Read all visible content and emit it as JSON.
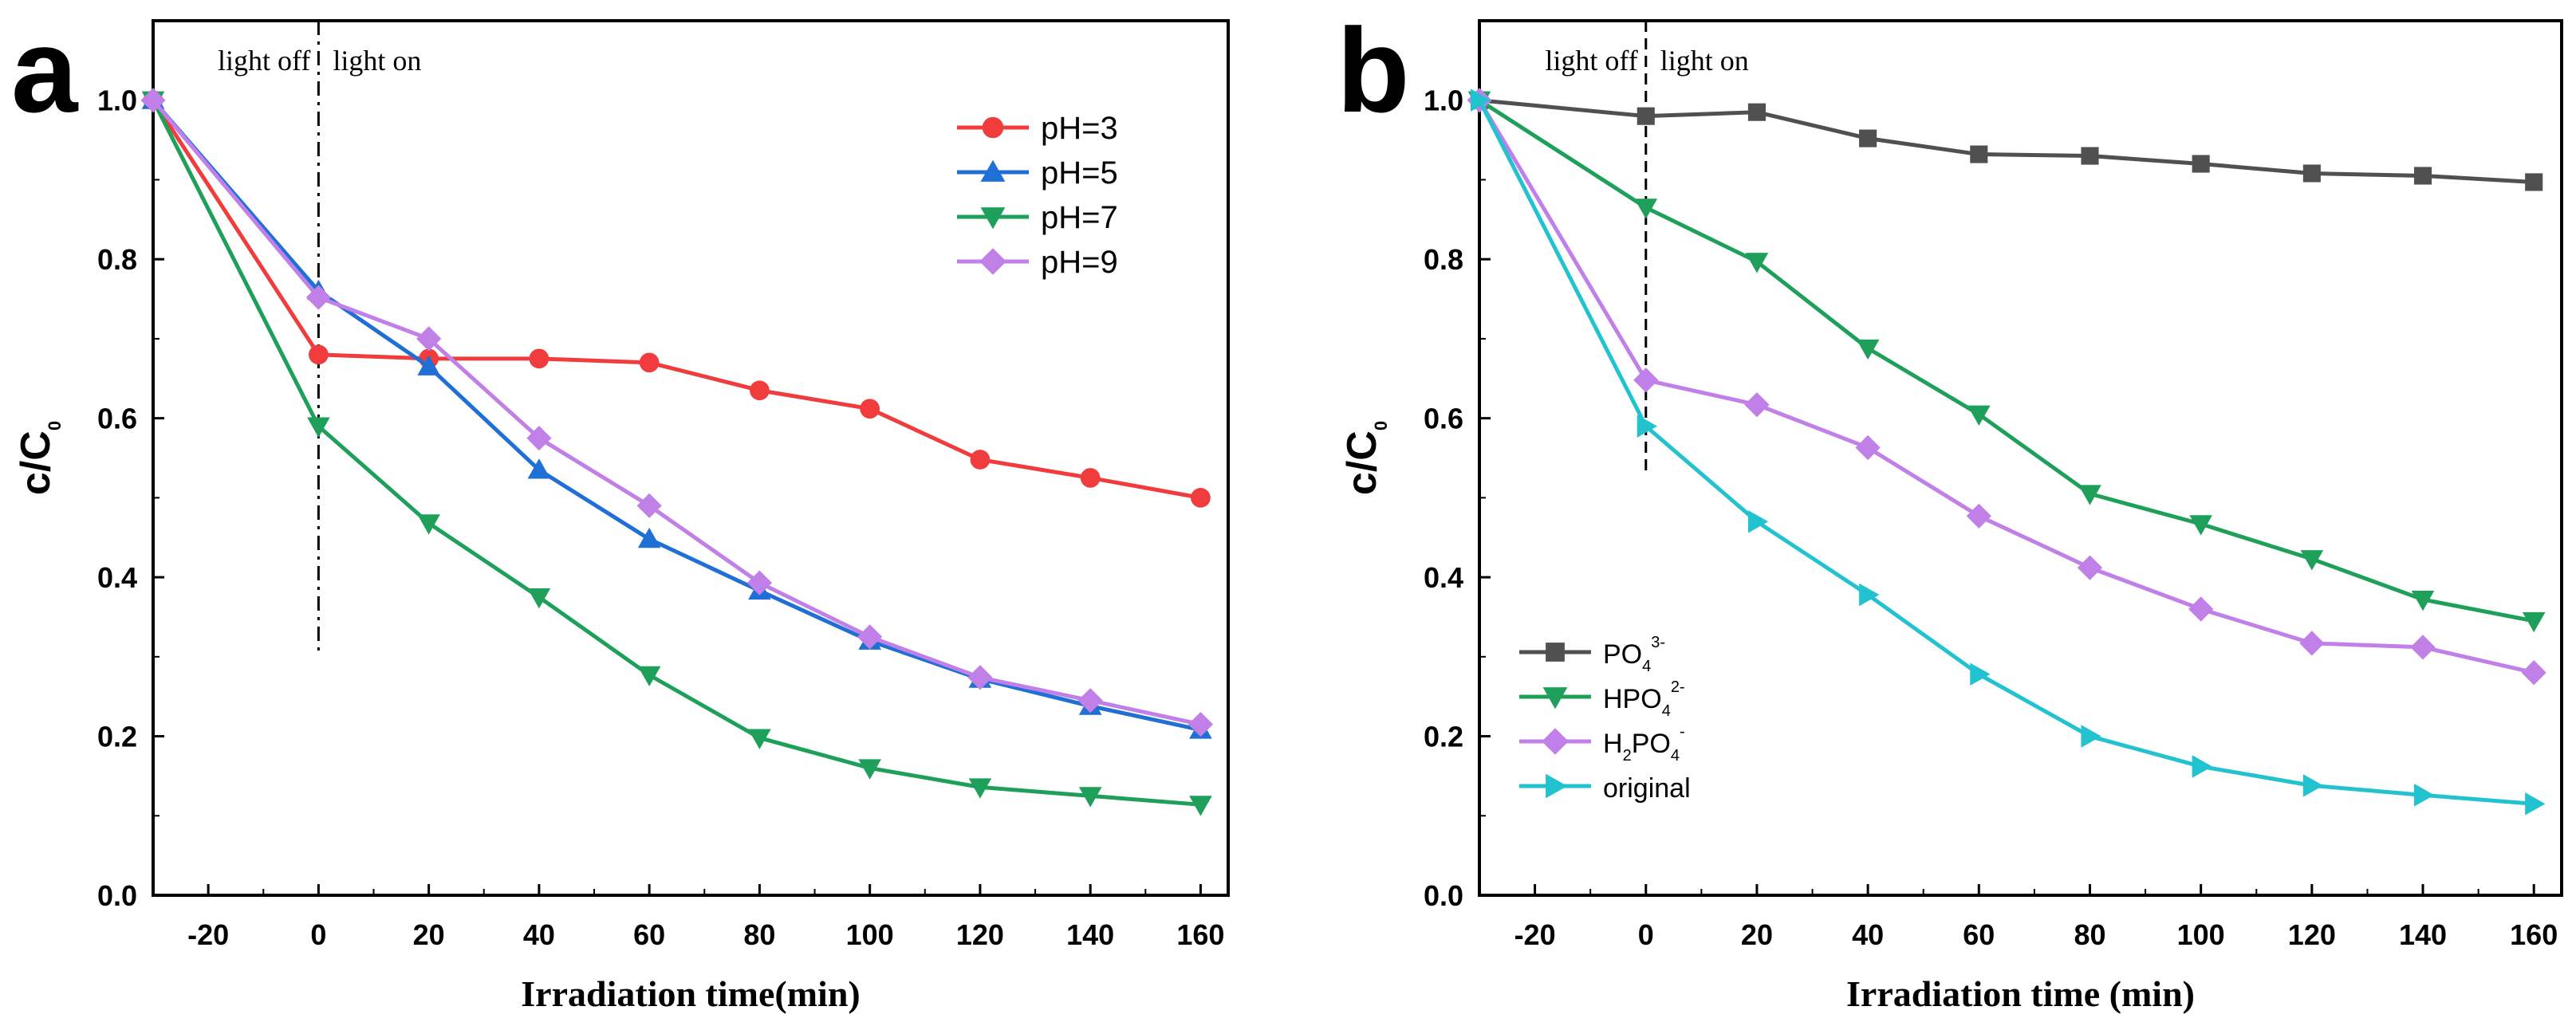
{
  "chart_data": [
    {
      "panel": "a",
      "type": "line",
      "xlabel": "Irradiation time(min)",
      "ylabel_main": "c/C",
      "ylabel_sub": "0",
      "xlim": [
        -30,
        165
      ],
      "ylim": [
        0.0,
        1.1
      ],
      "xticks": [
        "-20",
        "0",
        "20",
        "40",
        "60",
        "80",
        "100",
        "120",
        "140",
        "160"
      ],
      "xtick_values": [
        -20,
        0,
        20,
        40,
        60,
        80,
        100,
        120,
        140,
        160
      ],
      "yticks": [
        "0.0",
        "0.2",
        "0.4",
        "0.6",
        "0.8",
        "1.0"
      ],
      "ytick_values": [
        0.0,
        0.2,
        0.4,
        0.6,
        0.8,
        1.0
      ],
      "annotation_left": "light off",
      "annotation_right": "light on",
      "divider": {
        "x": 0,
        "y_from": 0.3,
        "y_to": 1.1,
        "style": "dash-dot"
      },
      "legend_position": "top-right",
      "x": [
        -30,
        0,
        20,
        40,
        60,
        80,
        100,
        120,
        140,
        160
      ],
      "series": [
        {
          "name": "pH=3",
          "color": "#f03c3c",
          "marker": "circle",
          "values": [
            1.0,
            0.68,
            0.675,
            0.675,
            0.67,
            0.635,
            0.612,
            0.548,
            0.525,
            0.5
          ]
        },
        {
          "name": "pH=5",
          "color": "#1f6fd6",
          "marker": "triangle-up",
          "values": [
            1.0,
            0.76,
            0.665,
            0.535,
            0.448,
            0.383,
            0.32,
            0.272,
            0.238,
            0.208
          ]
        },
        {
          "name": "pH=7",
          "color": "#1fa05a",
          "marker": "triangle-down",
          "values": [
            1.0,
            0.59,
            0.468,
            0.375,
            0.277,
            0.198,
            0.16,
            0.136,
            0.125,
            0.114
          ]
        },
        {
          "name": "pH=9",
          "color": "#c080e8",
          "marker": "diamond",
          "values": [
            1.0,
            0.752,
            0.7,
            0.575,
            0.49,
            0.393,
            0.325,
            0.274,
            0.245,
            0.215
          ]
        }
      ]
    },
    {
      "panel": "b",
      "type": "line",
      "xlabel": "Irradiation time (min)",
      "ylabel_main": "c/C",
      "ylabel_sub": "0",
      "xlim": [
        -30,
        165
      ],
      "ylim": [
        0.0,
        1.1
      ],
      "xticks": [
        "-20",
        "0",
        "20",
        "40",
        "60",
        "80",
        "100",
        "120",
        "140",
        "160"
      ],
      "xtick_values": [
        -20,
        0,
        20,
        40,
        60,
        80,
        100,
        120,
        140,
        160
      ],
      "yticks": [
        "0.0",
        "0.2",
        "0.4",
        "0.6",
        "0.8",
        "1.0"
      ],
      "ytick_values": [
        0.0,
        0.2,
        0.4,
        0.6,
        0.8,
        1.0
      ],
      "annotation_left": "light off",
      "annotation_right": "light on",
      "divider": {
        "x": 0,
        "y_from": 0.53,
        "y_to": 1.1,
        "style": "dashed"
      },
      "legend_position": "bottom-left",
      "x": [
        -30,
        0,
        20,
        40,
        60,
        80,
        100,
        120,
        140,
        160
      ],
      "series": [
        {
          "name": "PO",
          "sub": "4",
          "sup": "3-",
          "color": "#505050",
          "marker": "square",
          "values": [
            1.0,
            0.98,
            0.985,
            0.952,
            0.932,
            0.93,
            0.92,
            0.908,
            0.905,
            0.897
          ]
        },
        {
          "name": "HPO",
          "sub": "4",
          "sup": "2-",
          "color": "#1fa05a",
          "marker": "triangle-down",
          "values": [
            1.0,
            0.865,
            0.797,
            0.688,
            0.605,
            0.505,
            0.467,
            0.423,
            0.372,
            0.345
          ]
        },
        {
          "name": "H",
          "sub": "2",
          "name2": "PO",
          "sub2": "4",
          "sup": "-",
          "color": "#c080e8",
          "marker": "diamond",
          "values": [
            1.0,
            0.648,
            0.617,
            0.563,
            0.477,
            0.412,
            0.36,
            0.317,
            0.312,
            0.28
          ]
        },
        {
          "name": "original",
          "color": "#22c3cf",
          "marker": "triangle-right",
          "values": [
            1.0,
            0.59,
            0.47,
            0.378,
            0.278,
            0.2,
            0.162,
            0.138,
            0.126,
            0.115
          ]
        }
      ]
    }
  ]
}
